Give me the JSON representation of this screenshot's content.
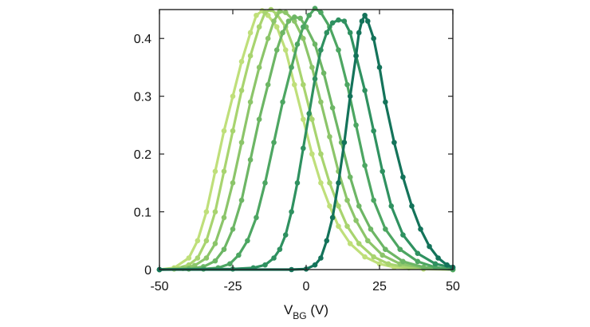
{
  "chart_data": {
    "type": "line",
    "xlabel": {
      "main": "V",
      "sub": "BG",
      "unit": " (V)"
    },
    "xlim": [
      -50,
      50
    ],
    "ylim": [
      0,
      0.45
    ],
    "x_ticks": [
      -50,
      -25,
      0,
      25,
      50
    ],
    "x_tick_labels": [
      "-50",
      "-25",
      "0",
      "25",
      "50"
    ],
    "y_ticks": [
      0,
      0.1,
      0.2,
      0.3,
      0.4
    ],
    "y_tick_labels": [
      "0",
      "0.1",
      "0.2",
      "0.3",
      "0.4"
    ],
    "grid": false,
    "series": [
      {
        "color": "#bfdf7a",
        "points": [
          [
            -50,
            0
          ],
          [
            -45,
            0.003
          ],
          [
            -40,
            0.02
          ],
          [
            -37,
            0.05
          ],
          [
            -34,
            0.1
          ],
          [
            -31,
            0.17
          ],
          [
            -28,
            0.24
          ],
          [
            -25,
            0.3
          ],
          [
            -22,
            0.36
          ],
          [
            -19,
            0.41
          ],
          [
            -17,
            0.44
          ],
          [
            -15,
            0.448
          ],
          [
            -13,
            0.44
          ],
          [
            -10,
            0.42
          ],
          [
            -7,
            0.38
          ],
          [
            -4,
            0.32
          ],
          [
            -1,
            0.26
          ],
          [
            2,
            0.2
          ],
          [
            5,
            0.15
          ],
          [
            8,
            0.11
          ],
          [
            11,
            0.075
          ],
          [
            15,
            0.045
          ],
          [
            20,
            0.022
          ],
          [
            25,
            0.01
          ],
          [
            30,
            0.004
          ],
          [
            40,
            0.001
          ],
          [
            50,
            0
          ]
        ]
      },
      {
        "color": "#a8d46f",
        "points": [
          [
            -50,
            0
          ],
          [
            -45,
            0.001
          ],
          [
            -40,
            0.008
          ],
          [
            -37,
            0.02
          ],
          [
            -34,
            0.05
          ],
          [
            -31,
            0.1
          ],
          [
            -28,
            0.17
          ],
          [
            -25,
            0.24
          ],
          [
            -22,
            0.31
          ],
          [
            -19,
            0.37
          ],
          [
            -16,
            0.42
          ],
          [
            -14,
            0.445
          ],
          [
            -12,
            0.45
          ],
          [
            -10,
            0.442
          ],
          [
            -7,
            0.42
          ],
          [
            -4,
            0.38
          ],
          [
            -1,
            0.32
          ],
          [
            2,
            0.26
          ],
          [
            5,
            0.2
          ],
          [
            8,
            0.15
          ],
          [
            11,
            0.11
          ],
          [
            14,
            0.075
          ],
          [
            18,
            0.045
          ],
          [
            23,
            0.022
          ],
          [
            28,
            0.01
          ],
          [
            35,
            0.003
          ],
          [
            50,
            0
          ]
        ]
      },
      {
        "color": "#8cc56a",
        "points": [
          [
            -50,
            0
          ],
          [
            -42,
            0.002
          ],
          [
            -38,
            0.007
          ],
          [
            -34,
            0.02
          ],
          [
            -31,
            0.045
          ],
          [
            -28,
            0.09
          ],
          [
            -25,
            0.15
          ],
          [
            -22,
            0.22
          ],
          [
            -19,
            0.29
          ],
          [
            -16,
            0.35
          ],
          [
            -13,
            0.4
          ],
          [
            -11,
            0.43
          ],
          [
            -9,
            0.447
          ],
          [
            -7,
            0.445
          ],
          [
            -4,
            0.43
          ],
          [
            -1,
            0.4
          ],
          [
            2,
            0.35
          ],
          [
            5,
            0.29
          ],
          [
            8,
            0.23
          ],
          [
            11,
            0.17
          ],
          [
            14,
            0.12
          ],
          [
            17,
            0.085
          ],
          [
            21,
            0.05
          ],
          [
            26,
            0.025
          ],
          [
            32,
            0.01
          ],
          [
            40,
            0.003
          ],
          [
            50,
            0
          ]
        ]
      },
      {
        "color": "#6db665",
        "points": [
          [
            -50,
            0
          ],
          [
            -40,
            0.001
          ],
          [
            -35,
            0.005
          ],
          [
            -31,
            0.015
          ],
          [
            -28,
            0.035
          ],
          [
            -25,
            0.07
          ],
          [
            -22,
            0.12
          ],
          [
            -19,
            0.19
          ],
          [
            -16,
            0.26
          ],
          [
            -13,
            0.32
          ],
          [
            -10,
            0.38
          ],
          [
            -8,
            0.41
          ],
          [
            -6,
            0.43
          ],
          [
            -4,
            0.437
          ],
          [
            -2,
            0.435
          ],
          [
            0,
            0.42
          ],
          [
            3,
            0.39
          ],
          [
            6,
            0.34
          ],
          [
            9,
            0.28
          ],
          [
            12,
            0.22
          ],
          [
            15,
            0.16
          ],
          [
            18,
            0.11
          ],
          [
            22,
            0.07
          ],
          [
            27,
            0.035
          ],
          [
            33,
            0.014
          ],
          [
            40,
            0.004
          ],
          [
            50,
            0
          ]
        ]
      },
      {
        "color": "#4da662",
        "points": [
          [
            -50,
            0
          ],
          [
            -35,
            0.001
          ],
          [
            -30,
            0.003
          ],
          [
            -26,
            0.01
          ],
          [
            -23,
            0.025
          ],
          [
            -20,
            0.05
          ],
          [
            -17,
            0.09
          ],
          [
            -14,
            0.15
          ],
          [
            -11,
            0.22
          ],
          [
            -8,
            0.29
          ],
          [
            -5,
            0.35
          ],
          [
            -3,
            0.39
          ],
          [
            -1,
            0.42
          ],
          [
            1,
            0.44
          ],
          [
            3,
            0.452
          ],
          [
            5,
            0.445
          ],
          [
            8,
            0.42
          ],
          [
            11,
            0.38
          ],
          [
            14,
            0.32
          ],
          [
            17,
            0.25
          ],
          [
            20,
            0.18
          ],
          [
            23,
            0.12
          ],
          [
            27,
            0.07
          ],
          [
            32,
            0.035
          ],
          [
            38,
            0.014
          ],
          [
            44,
            0.004
          ],
          [
            50,
            0
          ]
        ]
      },
      {
        "color": "#2f9160",
        "points": [
          [
            -50,
            0
          ],
          [
            -25,
            0.001
          ],
          [
            -18,
            0.003
          ],
          [
            -14,
            0.008
          ],
          [
            -11,
            0.02
          ],
          [
            -9,
            0.035
          ],
          [
            -7,
            0.06
          ],
          [
            -5,
            0.1
          ],
          [
            -3,
            0.15
          ],
          [
            -1,
            0.21
          ],
          [
            1,
            0.27
          ],
          [
            3,
            0.33
          ],
          [
            5,
            0.38
          ],
          [
            7,
            0.41
          ],
          [
            9,
            0.427
          ],
          [
            11,
            0.432
          ],
          [
            13,
            0.43
          ],
          [
            15,
            0.41
          ],
          [
            17,
            0.37
          ],
          [
            20,
            0.31
          ],
          [
            23,
            0.24
          ],
          [
            26,
            0.17
          ],
          [
            29,
            0.11
          ],
          [
            33,
            0.06
          ],
          [
            38,
            0.028
          ],
          [
            44,
            0.01
          ],
          [
            50,
            0.003
          ]
        ]
      },
      {
        "color": "#14735a",
        "points": [
          [
            -50,
            0
          ],
          [
            -5,
            0
          ],
          [
            0,
            0.001
          ],
          [
            3,
            0.008
          ],
          [
            5,
            0.02
          ],
          [
            7,
            0.05
          ],
          [
            9,
            0.09
          ],
          [
            11,
            0.15
          ],
          [
            13,
            0.22
          ],
          [
            15,
            0.3
          ],
          [
            17,
            0.37
          ],
          [
            18,
            0.41
          ],
          [
            19,
            0.43
          ],
          [
            20,
            0.44
          ],
          [
            21,
            0.43
          ],
          [
            23,
            0.4
          ],
          [
            25,
            0.35
          ],
          [
            27,
            0.29
          ],
          [
            30,
            0.22
          ],
          [
            33,
            0.16
          ],
          [
            36,
            0.11
          ],
          [
            39,
            0.07
          ],
          [
            42,
            0.04
          ],
          [
            45,
            0.02
          ],
          [
            48,
            0.008
          ],
          [
            50,
            0.004
          ]
        ]
      }
    ]
  }
}
